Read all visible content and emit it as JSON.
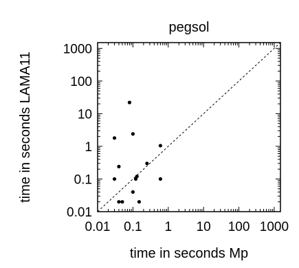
{
  "chart_data": {
    "type": "scatter",
    "title": "pegsol",
    "xlabel": "time in seconds Mp",
    "ylabel": "time in seconds LAMA11",
    "xscale": "log",
    "yscale": "log",
    "xlim": [
      0.01,
      1500
    ],
    "ylim": [
      0.01,
      1500
    ],
    "xticks": [
      0.01,
      0.1,
      1,
      10,
      100,
      1000
    ],
    "xtick_labels": [
      "0.01",
      "0.1",
      "1",
      "10",
      "100",
      "1000"
    ],
    "yticks": [
      0.01,
      0.1,
      1,
      10,
      100,
      1000
    ],
    "ytick_labels": [
      "0.01",
      "0.1",
      "1",
      "10",
      "100",
      "1000"
    ],
    "diagonal": "y = x",
    "grid": false,
    "points": [
      {
        "x": 0.08,
        "y": 22
      },
      {
        "x": 0.1,
        "y": 2.4
      },
      {
        "x": 0.03,
        "y": 1.8
      },
      {
        "x": 0.6,
        "y": 1.05
      },
      {
        "x": 0.25,
        "y": 0.3
      },
      {
        "x": 0.04,
        "y": 0.24
      },
      {
        "x": 0.13,
        "y": 0.12
      },
      {
        "x": 0.12,
        "y": 0.1
      },
      {
        "x": 0.03,
        "y": 0.1
      },
      {
        "x": 0.6,
        "y": 0.1
      },
      {
        "x": 0.1,
        "y": 0.04
      },
      {
        "x": 0.04,
        "y": 0.02
      },
      {
        "x": 0.05,
        "y": 0.02
      },
      {
        "x": 0.15,
        "y": 0.02
      }
    ]
  }
}
